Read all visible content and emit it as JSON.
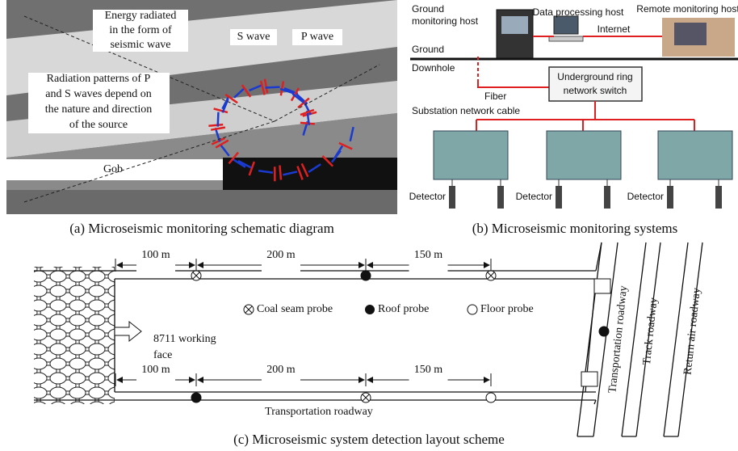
{
  "panel_a": {
    "energy_label": [
      "Energy radiated",
      "in the form of",
      "seismic wave"
    ],
    "s_wave": "S wave",
    "p_wave": "P  wave",
    "radiation_label": [
      "Radiation patterns of P",
      "and S waves depend on",
      "the nature and direction",
      "of the source"
    ],
    "gob": "Gob",
    "caption": "(a) Microseismic monitoring schematic diagram"
  },
  "panel_b": {
    "ground_host": [
      "Ground",
      "monitoring host"
    ],
    "data_host": "Data processing host",
    "remote_host": "Remote monitoring host",
    "internet": "Internet",
    "ground": "Ground",
    "downhole": "Downhole",
    "fiber": "Fiber",
    "switch": [
      "Underground ring",
      "network switch"
    ],
    "substation": "Substation network cable",
    "detectors": [
      "Detector",
      "Detector",
      "Detector"
    ],
    "caption": "(b) Microseismic monitoring systems"
  },
  "panel_c": {
    "top_distances": [
      "100 m",
      "200 m",
      "150 m"
    ],
    "bottom_distances": [
      "100 m",
      "200 m",
      "150 m"
    ],
    "legend": [
      "Coal seam probe",
      "Roof probe",
      "Floor probe"
    ],
    "face_label": [
      "8711 working",
      "face"
    ],
    "bottom_roadway": "Transportation roadway",
    "side_roadways": [
      "Transportation roadway",
      "Track roadway",
      "Return air roadway"
    ],
    "caption": "(c) Microseismic system detection layout scheme"
  }
}
